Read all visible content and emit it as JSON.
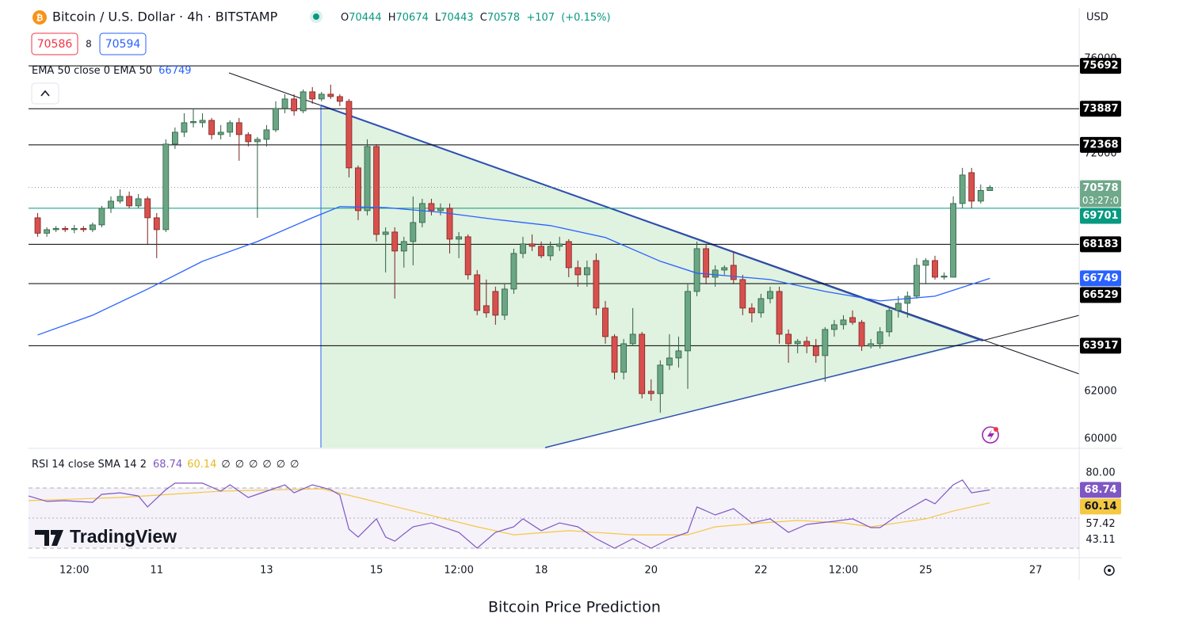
{
  "chart_data": {
    "type": "candlestick",
    "title": "Bitcoin / U.S. Dollar · 4h · BITSTAMP",
    "ohlc_labels": [
      "O",
      "H",
      "L",
      "C"
    ],
    "change": "+107",
    "change_pct": "(+0.15%)",
    "bid": 70586,
    "spread": 8,
    "ask": 70594,
    "currency": "USD",
    "countdown": "03:27:0",
    "brand": "TradingView",
    "caption": "Bitcoin Price Prediction",
    "up_color": "#6aa684",
    "down_color": "#d8504d",
    "x": [
      188,
      192,
      196,
      200,
      204,
      208,
      212,
      216,
      220,
      224,
      228,
      232,
      236,
      240,
      244,
      248,
      252,
      256,
      260,
      264,
      268,
      272,
      276,
      280,
      284,
      288,
      292,
      296,
      300,
      304,
      308,
      312,
      316,
      320,
      324,
      328,
      332,
      336,
      340,
      344,
      348,
      352,
      356,
      360,
      364,
      368,
      372,
      376,
      380,
      384,
      388,
      392,
      396,
      400,
      404,
      408,
      412,
      416,
      420,
      424,
      428,
      432,
      436,
      440,
      444,
      448,
      452,
      456,
      460,
      464,
      468,
      472,
      476,
      480,
      484,
      488,
      492,
      496,
      500,
      504,
      508,
      512,
      516,
      520,
      524,
      528,
      532,
      536,
      540,
      544,
      548,
      552,
      556,
      560,
      564,
      568,
      572,
      576,
      580,
      584,
      588,
      592,
      596,
      600,
      604
    ],
    "ohlc": [
      [
        69300,
        69500,
        68500,
        68650
      ],
      [
        68650,
        68900,
        68500,
        68800
      ],
      [
        68800,
        68950,
        68700,
        68850
      ],
      [
        68850,
        68950,
        68700,
        68800
      ],
      [
        68800,
        69000,
        68650,
        68850
      ],
      [
        68850,
        68950,
        68700,
        68800
      ],
      [
        68800,
        69100,
        68700,
        69000
      ],
      [
        69000,
        69800,
        68900,
        69700
      ],
      [
        69700,
        70200,
        69500,
        70000
      ],
      [
        70000,
        70500,
        69900,
        70200
      ],
      [
        70200,
        70400,
        69700,
        69800
      ],
      [
        69800,
        70300,
        69700,
        70100
      ],
      [
        70100,
        70200,
        68200,
        69300
      ],
      [
        69300,
        69500,
        67600,
        68800
      ],
      [
        68800,
        72600,
        68700,
        72400
      ],
      [
        72400,
        73100,
        72200,
        72900
      ],
      [
        72900,
        73700,
        72700,
        73300
      ],
      [
        73300,
        73900,
        73100,
        73350
      ],
      [
        73300,
        73700,
        73100,
        73400
      ],
      [
        73400,
        73500,
        72600,
        72800
      ],
      [
        72800,
        73200,
        72600,
        72900
      ],
      [
        72900,
        73400,
        72700,
        73300
      ],
      [
        73300,
        73500,
        71700,
        72800
      ],
      [
        72800,
        72900,
        72300,
        72500
      ],
      [
        72500,
        72700,
        69300,
        72600
      ],
      [
        72600,
        73200,
        72300,
        73000
      ],
      [
        73000,
        74200,
        72900,
        73900
      ],
      [
        73900,
        74500,
        73700,
        74300
      ],
      [
        74300,
        74500,
        73600,
        73800
      ],
      [
        73800,
        74700,
        73700,
        74600
      ],
      [
        74600,
        74800,
        74100,
        74300
      ],
      [
        74300,
        74600,
        74200,
        74500
      ],
      [
        74500,
        74900,
        74300,
        74400
      ],
      [
        74400,
        74500,
        74000,
        74200
      ],
      [
        74200,
        74300,
        71000,
        71400
      ],
      [
        71400,
        71500,
        69200,
        69600
      ],
      [
        69600,
        72600,
        69400,
        72300
      ],
      [
        72300,
        72400,
        68300,
        68600
      ],
      [
        68600,
        68900,
        67000,
        68700
      ],
      [
        68700,
        68900,
        65900,
        67900
      ],
      [
        67900,
        68500,
        67200,
        68300
      ],
      [
        68300,
        70200,
        67300,
        69100
      ],
      [
        69100,
        70100,
        68900,
        69900
      ],
      [
        69900,
        70100,
        69400,
        69600
      ],
      [
        69600,
        69900,
        69400,
        69700
      ],
      [
        69700,
        69900,
        67800,
        68400
      ],
      [
        68400,
        68700,
        67600,
        68500
      ],
      [
        68500,
        68600,
        66700,
        66900
      ],
      [
        66900,
        67100,
        65200,
        65400
      ],
      [
        65600,
        66700,
        65100,
        65300
      ],
      [
        66200,
        66400,
        64800,
        65200
      ],
      [
        65200,
        66500,
        65000,
        66300
      ],
      [
        66300,
        68000,
        66100,
        67800
      ],
      [
        67800,
        68500,
        67600,
        68200
      ],
      [
        68200,
        68600,
        67900,
        68100
      ],
      [
        68100,
        68300,
        67600,
        67700
      ],
      [
        67700,
        68300,
        67500,
        68100
      ],
      [
        68100,
        68500,
        67900,
        68200
      ],
      [
        68300,
        68400,
        66800,
        67200
      ],
      [
        67200,
        67500,
        66400,
        66900
      ],
      [
        66900,
        67500,
        66400,
        67200
      ],
      [
        67500,
        67800,
        65200,
        65500
      ],
      [
        65500,
        65800,
        64000,
        64300
      ],
      [
        64300,
        64400,
        62500,
        62800
      ],
      [
        62800,
        64200,
        62500,
        64000
      ],
      [
        64000,
        65500,
        63900,
        64400
      ],
      [
        64400,
        64500,
        61700,
        61900
      ],
      [
        62000,
        62500,
        61600,
        61900
      ],
      [
        61900,
        63300,
        61100,
        63100
      ],
      [
        63100,
        64400,
        62900,
        63400
      ],
      [
        63400,
        64300,
        63000,
        63700
      ],
      [
        63700,
        66500,
        62100,
        66200
      ],
      [
        66200,
        68300,
        66000,
        68000
      ],
      [
        68000,
        68200,
        66500,
        66800
      ],
      [
        66800,
        67300,
        66400,
        67100
      ],
      [
        67100,
        67300,
        66900,
        67200
      ],
      [
        67300,
        67900,
        66500,
        66700
      ],
      [
        66700,
        66900,
        65200,
        65500
      ],
      [
        65500,
        65700,
        64900,
        65300
      ],
      [
        65300,
        66100,
        65100,
        65900
      ],
      [
        65900,
        66400,
        65700,
        66200
      ],
      [
        66200,
        66400,
        64000,
        64400
      ],
      [
        64400,
        64600,
        63200,
        64000
      ],
      [
        64000,
        64200,
        63600,
        64100
      ],
      [
        64100,
        64300,
        63600,
        63900
      ],
      [
        63900,
        64200,
        63200,
        63500
      ],
      [
        63500,
        64700,
        62400,
        64600
      ],
      [
        64600,
        65000,
        64300,
        64800
      ],
      [
        64800,
        65200,
        64600,
        65000
      ],
      [
        65100,
        65400,
        64800,
        64900
      ],
      [
        64900,
        65000,
        63700,
        63900
      ],
      [
        63900,
        64200,
        63800,
        64000
      ],
      [
        64000,
        64700,
        63800,
        64500
      ],
      [
        64500,
        65500,
        64300,
        65400
      ],
      [
        65400,
        66000,
        65100,
        65700
      ],
      [
        65700,
        66200,
        65100,
        66000
      ],
      [
        66000,
        67600,
        65900,
        67300
      ],
      [
        67300,
        67600,
        66500,
        67500
      ],
      [
        67500,
        67700,
        66700,
        66800
      ],
      [
        66800,
        67000,
        66700,
        66850
      ],
      [
        66800,
        70200,
        66800,
        69900
      ],
      [
        69900,
        71400,
        69700,
        71100
      ],
      [
        71200,
        71400,
        69700,
        70000
      ],
      [
        70000,
        70700,
        69900,
        70450
      ],
      [
        70444,
        70674,
        70443,
        70578
      ]
    ],
    "xlim": [
      184,
      643
    ],
    "xticks": [
      {
        "value": 204,
        "label": "12:00"
      },
      {
        "value": 240,
        "label": "11"
      },
      {
        "value": 288,
        "label": "13"
      },
      {
        "value": 336,
        "label": "15"
      },
      {
        "value": 372,
        "label": "12:00"
      },
      {
        "value": 408,
        "label": "18"
      },
      {
        "value": 456,
        "label": "20"
      },
      {
        "value": 504,
        "label": "22"
      },
      {
        "value": 540,
        "label": "12:00"
      },
      {
        "value": 576,
        "label": "25"
      },
      {
        "value": 624,
        "label": "27"
      }
    ],
    "ylim": [
      59630,
      78130
    ],
    "yticks": [
      60000,
      62000,
      72000,
      76000
    ],
    "levels": [
      75692,
      73887,
      72368,
      68183,
      66529,
      63917
    ],
    "level_color": "#000000",
    "green_level": 69701,
    "green_level_color": "#089981",
    "last_color": "#6fa88a",
    "ema": {
      "legend": "EMA 50 close 0 EMA 50",
      "color": "#2962ff",
      "x": [
        188,
        212,
        236,
        260,
        284,
        308,
        320,
        340,
        364,
        388,
        412,
        436,
        460,
        476,
        508,
        532,
        556,
        580,
        604
      ],
      "values": [
        64370,
        65200,
        66300,
        67470,
        68300,
        69300,
        69770,
        69730,
        69530,
        69230,
        68970,
        68470,
        67470,
        66970,
        66700,
        66200,
        65800,
        66000,
        66749
      ]
    },
    "rsi": {
      "legend": "RSI 14 close SMA 14 2",
      "color": "#7e57c2",
      "placeholders": [
        "∅",
        "∅",
        "∅",
        "∅",
        "∅",
        "∅"
      ],
      "ylim": [
        24.2,
        95.8
      ],
      "yticks": [
        {
          "value": 80,
          "label": "80.00"
        }
      ],
      "bands": [
        70,
        50,
        30
      ],
      "extra_labels": [
        "57.42",
        "43.11"
      ],
      "x": [
        184,
        192,
        200,
        212,
        216,
        224,
        232,
        236,
        244,
        248,
        260,
        268,
        272,
        280,
        288,
        296,
        300,
        308,
        316,
        320,
        324,
        328,
        336,
        340,
        344,
        352,
        360,
        372,
        380,
        388,
        396,
        400,
        408,
        416,
        424,
        432,
        440,
        448,
        456,
        464,
        472,
        476,
        484,
        492,
        500,
        508,
        516,
        524,
        536,
        544,
        552,
        556,
        564,
        576,
        580,
        588,
        592,
        596,
        604
      ],
      "values": [
        64.7,
        61.1,
        61.6,
        60.5,
        65.8,
        66.8,
        64.7,
        57.4,
        68.9,
        73.2,
        73.2,
        67.9,
        72.1,
        63.7,
        67.9,
        72.1,
        66.8,
        72.1,
        68.9,
        65.3,
        42.6,
        37.4,
        49.5,
        37.4,
        34.7,
        44.2,
        46.8,
        40.5,
        30.0,
        40.5,
        44.2,
        49.5,
        41.6,
        46.8,
        44.2,
        36.3,
        30.0,
        36.3,
        30.0,
        36.3,
        40.5,
        57.4,
        52.1,
        56.3,
        46.8,
        49.5,
        40.5,
        45.8,
        47.9,
        49.5,
        43.7,
        43.7,
        52.1,
        62.6,
        59.5,
        72.1,
        75.3,
        66.8,
        68.74
      ]
    },
    "rsi_sma": {
      "color": "#f5c842",
      "x": [
        184,
        224,
        268,
        312,
        328,
        352,
        380,
        396,
        420,
        448,
        472,
        484,
        504,
        520,
        540,
        552,
        576,
        588,
        604
      ],
      "values": [
        61.6,
        63.7,
        67.9,
        69.5,
        63.7,
        54.7,
        44.2,
        38.9,
        41.6,
        38.9,
        38.9,
        44.2,
        46.8,
        48.4,
        46.8,
        44.2,
        49.5,
        54.7,
        60.14
      ]
    }
  }
}
